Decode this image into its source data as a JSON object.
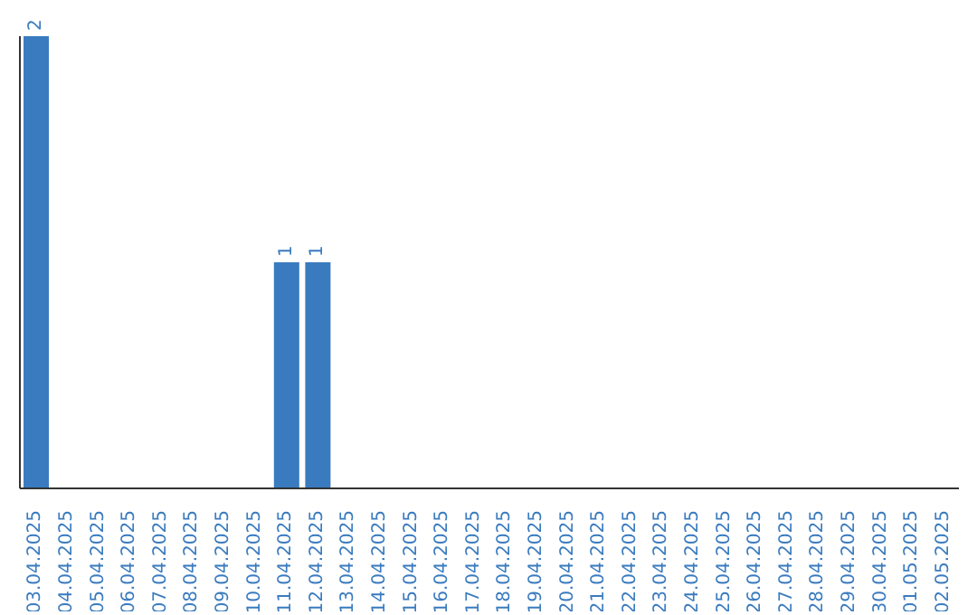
{
  "chart_data": {
    "type": "bar",
    "categories": [
      "03.04.2025",
      "04.04.2025",
      "05.04.2025",
      "06.04.2025",
      "07.04.2025",
      "08.04.2025",
      "09.04.2025",
      "10.04.2025",
      "11.04.2025",
      "12.04.2025",
      "13.04.2025",
      "14.04.2025",
      "15.04.2025",
      "16.04.2025",
      "17.04.2025",
      "18.04.2025",
      "19.04.2025",
      "20.04.2025",
      "21.04.2025",
      "22.04.2025",
      "23.04.2025",
      "24.04.2025",
      "25.04.2025",
      "26.04.2025",
      "27.04.2025",
      "28.04.2025",
      "29.04.2025",
      "30.04.2025",
      "01.05.2025",
      "02.05.2025"
    ],
    "values": [
      2,
      0,
      0,
      0,
      0,
      0,
      0,
      0,
      1,
      1,
      0,
      0,
      0,
      0,
      0,
      0,
      0,
      0,
      0,
      0,
      0,
      0,
      0,
      0,
      0,
      0,
      0,
      0,
      0,
      0
    ],
    "value_labels": [
      "2",
      null,
      null,
      null,
      null,
      null,
      null,
      null,
      "1",
      "1",
      null,
      null,
      null,
      null,
      null,
      null,
      null,
      null,
      null,
      null,
      null,
      null,
      null,
      null,
      null,
      null,
      null,
      null,
      null,
      null
    ],
    "color": "#3a7bbf",
    "grid": false,
    "legend": false
  }
}
